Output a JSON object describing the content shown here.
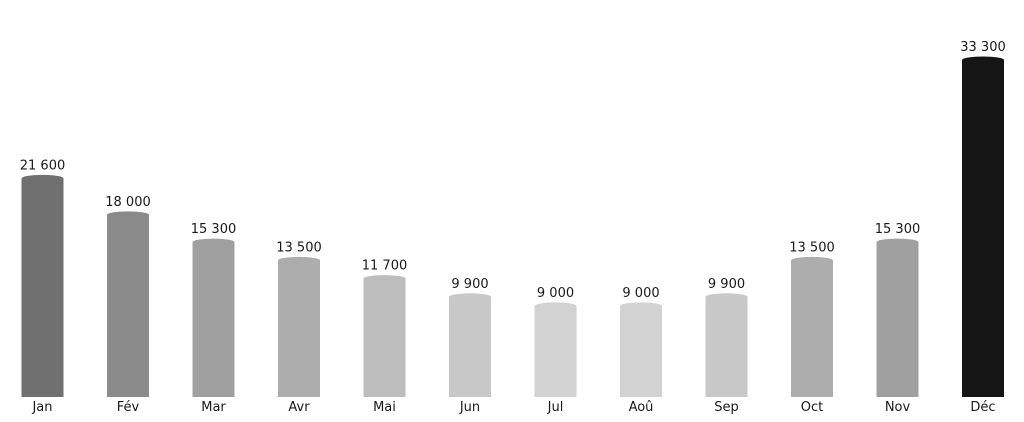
{
  "chart_data": {
    "type": "bar",
    "categories": [
      "Jan",
      "Fév",
      "Mar",
      "Avr",
      "Mai",
      "Jun",
      "Jul",
      "Aoû",
      "Sep",
      "Oct",
      "Nov",
      "Déc"
    ],
    "values": [
      21600,
      18000,
      15300,
      13500,
      11700,
      9900,
      9000,
      9000,
      9900,
      13500,
      15300,
      33300
    ],
    "value_labels": [
      "21 600",
      "18 000",
      "15 300",
      "13 500",
      "11 700",
      "9 900",
      "9 000",
      "9 000",
      "9 900",
      "13 500",
      "15 300",
      "33 300"
    ],
    "title": "",
    "xlabel": "",
    "ylabel": "",
    "ylim": [
      0,
      33300
    ],
    "grid": false,
    "legend": "none",
    "bar_colors": [
      "#707070",
      "#8a8a8a",
      "#a0a0a0",
      "#adadad",
      "#bdbdbd",
      "#c8c8c8",
      "#d2d2d2",
      "#d2d2d2",
      "#c8c8c8",
      "#adadad",
      "#a0a0a0",
      "#151515"
    ]
  }
}
